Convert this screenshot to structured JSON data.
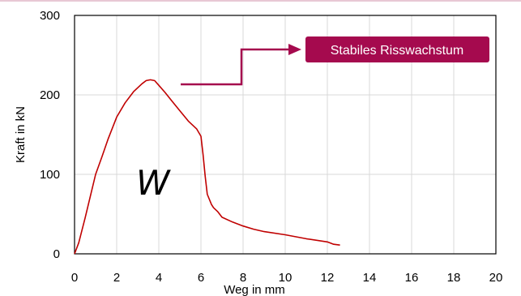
{
  "colors": {
    "curve": "#c00000",
    "accent": "#a50a4e",
    "grid": "#d9d9d9",
    "top_border": "#e8c8d4"
  },
  "chart_data": {
    "type": "line",
    "xlabel": "Weg in mm",
    "ylabel": "Kraft in kN",
    "xlim": [
      0,
      20
    ],
    "ylim": [
      0,
      300
    ],
    "x_ticks": [
      "0",
      "2",
      "4",
      "6",
      "8",
      "10",
      "12",
      "14",
      "16",
      "18",
      "20"
    ],
    "y_ticks": [
      "0",
      "100",
      "200",
      "300"
    ],
    "grid": true,
    "legend": "none",
    "series": [
      {
        "x": [
          0,
          0.2,
          0.5,
          0.8,
          1.0,
          1.3,
          1.6,
          2.0,
          2.4,
          2.8,
          3.2,
          3.4,
          3.6,
          3.8,
          4.0,
          4.3,
          4.6,
          5.0,
          5.4,
          5.8,
          6.0,
          6.1,
          6.2,
          6.3,
          6.5,
          6.6,
          6.8,
          7.0,
          7.5,
          8.0,
          8.5,
          9.0,
          10.0,
          11.0,
          12.0,
          12.3,
          12.6
        ],
        "y": [
          0,
          14,
          45,
          78,
          100,
          122,
          145,
          172,
          190,
          204,
          214,
          218,
          219,
          218,
          212,
          203,
          193,
          180,
          167,
          157,
          148,
          125,
          98,
          75,
          62,
          58,
          53,
          46,
          40,
          35,
          31,
          28,
          24,
          19,
          15,
          12,
          11
        ]
      }
    ],
    "annotations": {
      "label": "Stabiles Risswachstum",
      "region_label": "W"
    }
  }
}
